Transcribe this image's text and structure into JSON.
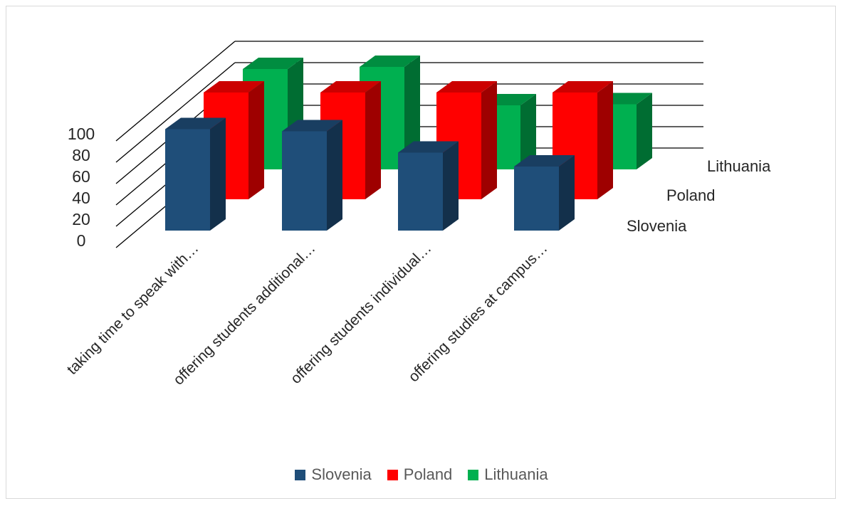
{
  "chart_data": {
    "type": "bar",
    "subtype": "3d-column",
    "categories": [
      "taking time to speak with…",
      "offering students additional…",
      "offering students individual…",
      "offering studies at campus…"
    ],
    "series": [
      {
        "name": "Slovenia",
        "color": "#1f4e79",
        "values": [
          95,
          93,
          73,
          60
        ]
      },
      {
        "name": "Poland",
        "color": "#ff0000",
        "values": [
          100,
          100,
          100,
          100
        ]
      },
      {
        "name": "Lithuania",
        "color": "#00b050",
        "values": [
          94,
          96,
          60,
          61
        ]
      }
    ],
    "y_ticks": [
      "0",
      "20",
      "40",
      "60",
      "80",
      "100"
    ],
    "ylim": [
      0,
      100
    ],
    "grid": true,
    "legend_position": "bottom"
  }
}
